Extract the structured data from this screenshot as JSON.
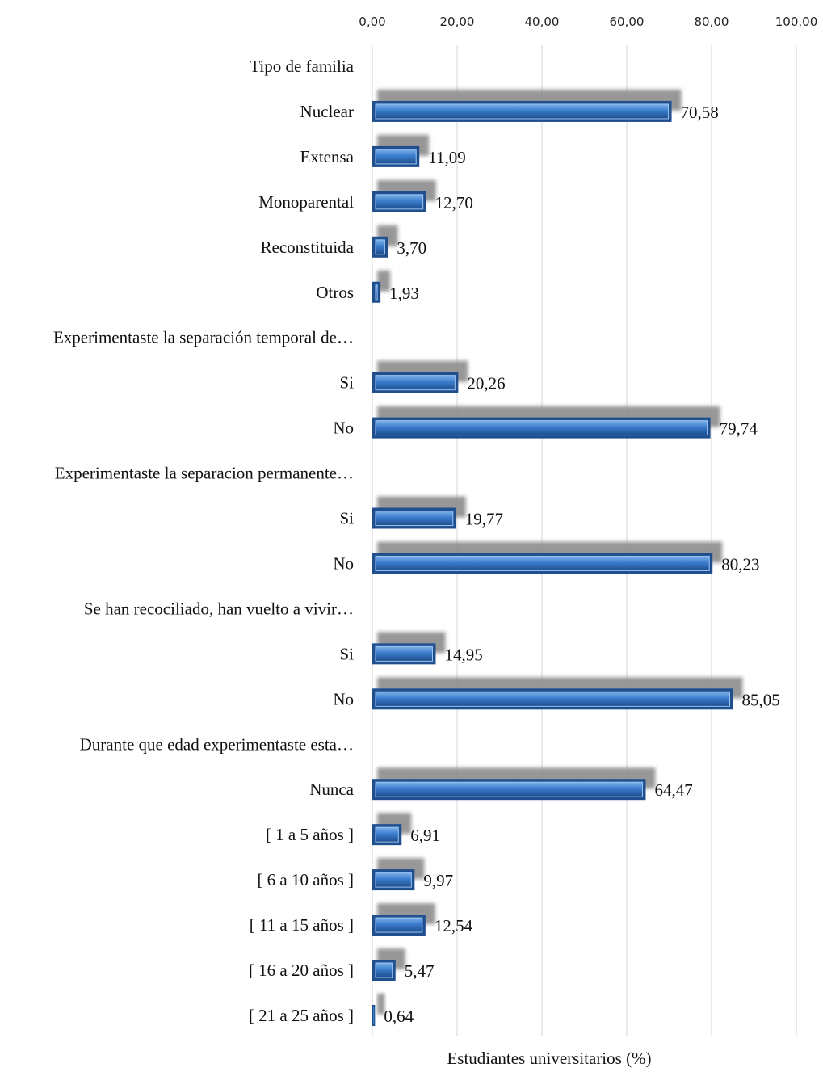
{
  "chart_data": {
    "type": "bar",
    "orientation": "horizontal",
    "xlabel": "Estudiantes universitarios (%)",
    "xlim": [
      0,
      100
    ],
    "xticks": [
      "0,00",
      "20,00",
      "40,00",
      "60,00",
      "80,00",
      "100,00"
    ],
    "grid": "vertical",
    "bar_color": "#2e6db5",
    "rows": [
      {
        "label": "Tipo de familia",
        "header": true
      },
      {
        "label": "Nuclear",
        "value": 70.58,
        "value_label": "70,58"
      },
      {
        "label": "Extensa",
        "value": 11.09,
        "value_label": "11,09"
      },
      {
        "label": "Monoparental",
        "value": 12.7,
        "value_label": "12,70"
      },
      {
        "label": "Reconstituida",
        "value": 3.7,
        "value_label": "3,70"
      },
      {
        "label": "Otros",
        "value": 1.93,
        "value_label": "1,93"
      },
      {
        "label": "Experimentaste la separación temporal de…",
        "header": true
      },
      {
        "label": "Si",
        "value": 20.26,
        "value_label": "20,26"
      },
      {
        "label": "No",
        "value": 79.74,
        "value_label": "79,74"
      },
      {
        "label": "Experimentaste la separacion permanente…",
        "header": true
      },
      {
        "label": "Si",
        "value": 19.77,
        "value_label": "19,77"
      },
      {
        "label": "No",
        "value": 80.23,
        "value_label": "80,23"
      },
      {
        "label": "Se han recociliado, han vuelto a vivir…",
        "header": true
      },
      {
        "label": "Si",
        "value": 14.95,
        "value_label": "14,95"
      },
      {
        "label": "No",
        "value": 85.05,
        "value_label": "85,05"
      },
      {
        "label": "Durante que edad experimentaste esta…",
        "header": true
      },
      {
        "label": "Nunca",
        "value": 64.47,
        "value_label": "64,47"
      },
      {
        "label": "[ 1 a 5 años ]",
        "value": 6.91,
        "value_label": "6,91"
      },
      {
        "label": "[ 6 a 10 años ]",
        "value": 9.97,
        "value_label": "9,97"
      },
      {
        "label": "[ 11 a 15 años ]",
        "value": 12.54,
        "value_label": "12,54"
      },
      {
        "label": "[ 16 a 20 años ]",
        "value": 5.47,
        "value_label": "5,47"
      },
      {
        "label": "[ 21 a 25 años ]",
        "value": 0.64,
        "value_label": "0,64"
      }
    ]
  }
}
